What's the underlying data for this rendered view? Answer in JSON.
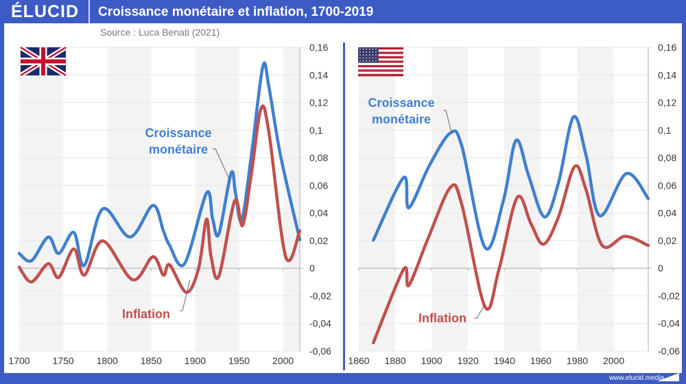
{
  "header": {
    "logo": "ÉLUCID",
    "title": "Croissance monétaire et inflation, 1700-2019",
    "source": "Source : Luca Benati (2021)"
  },
  "footer": {
    "url": "www.elucid.media"
  },
  "colors": {
    "brand": "#3d5bc4",
    "money": "#3f7fcf",
    "inflation": "#c0504d"
  },
  "chart_data": [
    {
      "type": "line",
      "country_flag": "uk-flag",
      "xlim": [
        1700,
        2019
      ],
      "ylim": [
        -0.06,
        0.16
      ],
      "x_ticks": [
        "1700",
        "1750",
        "1800",
        "1850",
        "1900",
        "1950",
        "2000"
      ],
      "y_ticks": [
        "0,16",
        "0,14",
        "0,12",
        "0,1",
        "0,08",
        "0,06",
        "0,04",
        "0,02",
        "0",
        "-0,02",
        "-0,04",
        "-0,06"
      ],
      "annotations": {
        "money": [
          "Croissance",
          "monétaire"
        ],
        "inflation": "Inflation"
      },
      "series": [
        {
          "name": "Croissance monétaire",
          "points": [
            [
              1700,
              0.0107
            ],
            [
              1714,
              0.0055
            ],
            [
              1733,
              0.0226
            ],
            [
              1745,
              0.0107
            ],
            [
              1762,
              0.026
            ],
            [
              1774,
              0.002
            ],
            [
              1795,
              0.043
            ],
            [
              1826,
              0.0226
            ],
            [
              1852,
              0.0455
            ],
            [
              1864,
              0.027
            ],
            [
              1871,
              0.0165
            ],
            [
              1888,
              0.0033
            ],
            [
              1913,
              0.0545
            ],
            [
              1920,
              0.0355
            ],
            [
              1927,
              0.0248
            ],
            [
              1941,
              0.069
            ],
            [
              1946,
              0.054
            ],
            [
              1953,
              0.0347
            ],
            [
              1964,
              0.082
            ],
            [
              1977,
              0.146
            ],
            [
              1984,
              0.131
            ],
            [
              1997,
              0.082
            ],
            [
              2019,
              0.0207
            ]
          ]
        },
        {
          "name": "Inflation",
          "points": [
            [
              1700,
              0.0008
            ],
            [
              1714,
              -0.0099
            ],
            [
              1733,
              0.0033
            ],
            [
              1745,
              -0.0066
            ],
            [
              1762,
              0.014
            ],
            [
              1774,
              -0.005
            ],
            [
              1795,
              0.0198
            ],
            [
              1829,
              -0.0083
            ],
            [
              1852,
              0.0083
            ],
            [
              1864,
              -0.005
            ],
            [
              1871,
              0.0025
            ],
            [
              1890,
              -0.0174
            ],
            [
              1904,
              0
            ],
            [
              1913,
              0.0355
            ],
            [
              1918,
              0.009
            ],
            [
              1927,
              -0.0058
            ],
            [
              1945,
              0.0488
            ],
            [
              1954,
              0.031
            ],
            [
              1964,
              0.0686
            ],
            [
              1975,
              0.1157
            ],
            [
              1984,
              0.098
            ],
            [
              2003,
              0.0083
            ],
            [
              2019,
              0.027
            ]
          ]
        }
      ]
    },
    {
      "type": "line",
      "country_flag": "us-flag",
      "xlim": [
        1860,
        2019
      ],
      "ylim": [
        -0.06,
        0.16
      ],
      "x_ticks": [
        "1860",
        "1880",
        "1900",
        "1920",
        "1940",
        "1960",
        "1980",
        "2000"
      ],
      "y_ticks": [
        "0,16",
        "0,14",
        "0,12",
        "0,1",
        "0,08",
        "0,06",
        "0,04",
        "0,02",
        "0",
        "-0,02",
        "-0,04",
        "-0,06"
      ],
      "annotations": {
        "money": [
          "Croissance",
          "monétaire"
        ],
        "inflation": "Inflation"
      },
      "series": [
        {
          "name": "Croissance monétaire",
          "points": [
            [
              1868,
              0.0203
            ],
            [
              1884.6,
              0.0656
            ],
            [
              1887.5,
              0.0438
            ],
            [
              1899,
              0.075
            ],
            [
              1910.4,
              0.098
            ],
            [
              1916.7,
              0.088
            ],
            [
              1929.4,
              0.0149
            ],
            [
              1939.4,
              0.0488
            ],
            [
              1946.4,
              0.0926
            ],
            [
              1953.3,
              0.067
            ],
            [
              1962,
              0.0372
            ],
            [
              1969.7,
              0.062
            ],
            [
              1977.9,
              0.1096
            ],
            [
              1984.8,
              0.082
            ],
            [
              1992.4,
              0.038
            ],
            [
              2007,
              0.0686
            ],
            [
              2019,
              0.0504
            ]
          ]
        },
        {
          "name": "Inflation",
          "points": [
            [
              1868,
              -0.054
            ],
            [
              1884.6,
              -0.0008
            ],
            [
              1887.5,
              -0.0124
            ],
            [
              1897.8,
              0.0207
            ],
            [
              1910.4,
              0.0587
            ],
            [
              1916.7,
              0.0455
            ],
            [
              1929.4,
              -0.0281
            ],
            [
              1937,
              -0.0008
            ],
            [
              1947,
              0.0512
            ],
            [
              1954.6,
              0.0322
            ],
            [
              1961.5,
              0.0174
            ],
            [
              1969.7,
              0.0372
            ],
            [
              1978.5,
              0.0736
            ],
            [
              1984.8,
              0.057
            ],
            [
              1993.7,
              0.0165
            ],
            [
              2006.3,
              0.0231
            ],
            [
              2019,
              0.0165
            ]
          ]
        }
      ]
    }
  ]
}
